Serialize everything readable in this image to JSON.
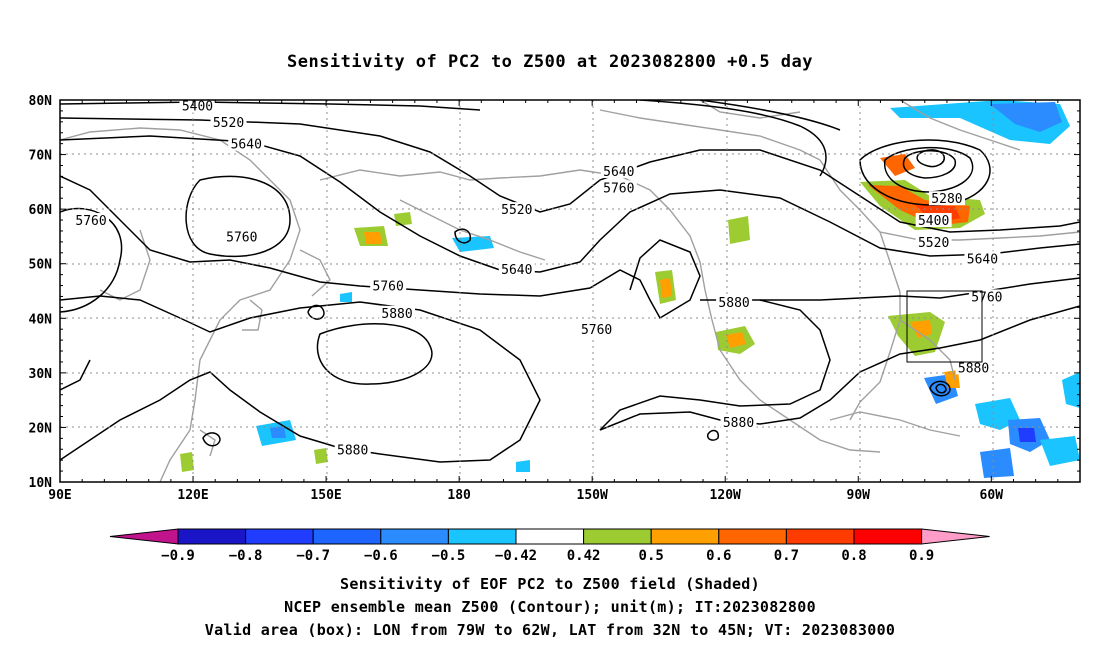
{
  "title": "Sensitivity of PC2 to Z500 at 2023082800 +0.5 day",
  "map": {
    "lon_labels": [
      "90E",
      "120E",
      "150E",
      "180",
      "150W",
      "120W",
      "90W",
      "60W"
    ],
    "lat_labels": [
      "80N",
      "70N",
      "60N",
      "50N",
      "40N",
      "30N",
      "20N",
      "10N"
    ],
    "contour_labels": [
      {
        "text": "5400",
        "lon": 121,
        "lat": 79
      },
      {
        "text": "5520",
        "lon": 128,
        "lat": 76
      },
      {
        "text": "5640",
        "lon": 132,
        "lat": 72
      },
      {
        "text": "5760",
        "lon": 97,
        "lat": 58
      },
      {
        "text": "5760",
        "lon": 131,
        "lat": 55
      },
      {
        "text": "5520",
        "lon": 193,
        "lat": 60
      },
      {
        "text": "5640",
        "lon": 216,
        "lat": 67
      },
      {
        "text": "5760",
        "lon": 216,
        "lat": 64
      },
      {
        "text": "5640",
        "lon": 193,
        "lat": 49
      },
      {
        "text": "5760",
        "lon": 164,
        "lat": 46
      },
      {
        "text": "5880",
        "lon": 166,
        "lat": 41
      },
      {
        "text": "5760",
        "lon": 211,
        "lat": 38
      },
      {
        "text": "5880",
        "lon": 242,
        "lat": 43
      },
      {
        "text": "5280",
        "lon": 290,
        "lat": 62
      },
      {
        "text": "5400",
        "lon": 287,
        "lat": 58
      },
      {
        "text": "5520",
        "lon": 287,
        "lat": 54
      },
      {
        "text": "5640",
        "lon": 298,
        "lat": 51
      },
      {
        "text": "5760",
        "lon": 299,
        "lat": 44
      },
      {
        "text": "5880",
        "lon": 296,
        "lat": 31
      },
      {
        "text": "5880",
        "lon": 243,
        "lat": 21
      },
      {
        "text": "5880",
        "lon": 156,
        "lat": 16
      }
    ]
  },
  "colorbar": {
    "labels": [
      "−0.9",
      "−0.8",
      "−0.7",
      "−0.6",
      "−0.5",
      "−0.42",
      "0.42",
      "0.5",
      "0.6",
      "0.7",
      "0.8",
      "0.9"
    ],
    "colors": [
      "#1a16c8",
      "#1f3cff",
      "#1e64ff",
      "#2b8cff",
      "#19c4ff",
      "#ffffff",
      "#9ccc32",
      "#ffa000",
      "#ff6600",
      "#ff3c00",
      "#ff0000"
    ],
    "left_arrow_color": "#c0138c",
    "right_arrow_color": "#ff9cc8"
  },
  "captions": [
    "Sensitivity of EOF PC2 to Z500 field (Shaded)",
    "NCEP ensemble mean Z500 (Contour); unit(m); IT:2023082800",
    "Valid area (box): LON from 79W to 62W, LAT from 32N to 45N; VT: 2023083000"
  ]
}
